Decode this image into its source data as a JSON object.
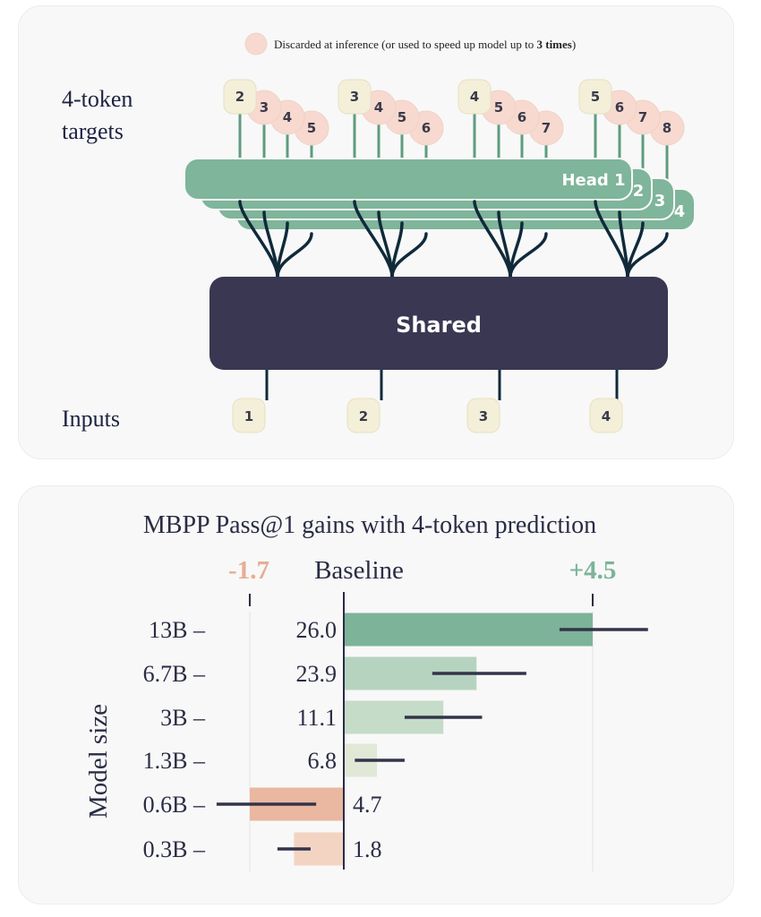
{
  "diagram": {
    "legend_text_prefix": "Discarded at inference (or used to speed up model up to ",
    "legend_text_bold": "3 times",
    "legend_text_suffix": ")",
    "targets_label_line1": "4-token",
    "targets_label_line2": "targets",
    "inputs_label": "Inputs",
    "shared_label": "Shared",
    "head_label_1": "Head 1",
    "head_label_2": "2",
    "head_label_3": "3",
    "head_label_4": "4",
    "inputs": [
      "1",
      "2",
      "3",
      "4"
    ],
    "targets": [
      [
        "2",
        "3",
        "4",
        "5"
      ],
      [
        "3",
        "4",
        "5",
        "6"
      ],
      [
        "4",
        "5",
        "6",
        "7"
      ],
      [
        "5",
        "6",
        "7",
        "8"
      ]
    ],
    "colors": {
      "head": "#7fb59a",
      "shared": "#3a3752",
      "token_kept": "#f3efd9",
      "token_discarded": "#f7d9cf",
      "stem": "#5e9c7f",
      "branch": "#102a3a"
    }
  },
  "chart_data": {
    "type": "bar",
    "title": "MBPP Pass@1  gains with 4-token prediction",
    "ylabel": "Model size",
    "baseline_label": "Baseline",
    "min_label": "-1.7",
    "max_label": "+4.5",
    "categories": [
      "13B",
      "6.7B",
      "3B",
      "1.3B",
      "0.6B",
      "0.3B"
    ],
    "category_tick": " –",
    "baseline_values": [
      "26.0",
      "23.9",
      "11.1",
      "6.8",
      "4.7",
      "1.8"
    ],
    "gains": [
      4.5,
      2.4,
      1.8,
      0.6,
      -1.7,
      -0.9
    ],
    "error_low": [
      3.9,
      1.6,
      1.1,
      0.2,
      -2.3,
      -1.2
    ],
    "error_high": [
      5.5,
      3.3,
      2.5,
      1.1,
      -0.5,
      -0.6
    ],
    "xlim": [
      -1.7,
      4.5
    ],
    "colors": {
      "13B": "#7db399",
      "6.7B": "#b6d3bf",
      "3B": "#c5dcc8",
      "1.3B": "#e1e8d6",
      "0.6B": "#eab7a0",
      "0.3B": "#f3d4c2",
      "error_bar": "#33344a",
      "min_label": "#e8ad92",
      "max_label": "#7db399"
    }
  }
}
